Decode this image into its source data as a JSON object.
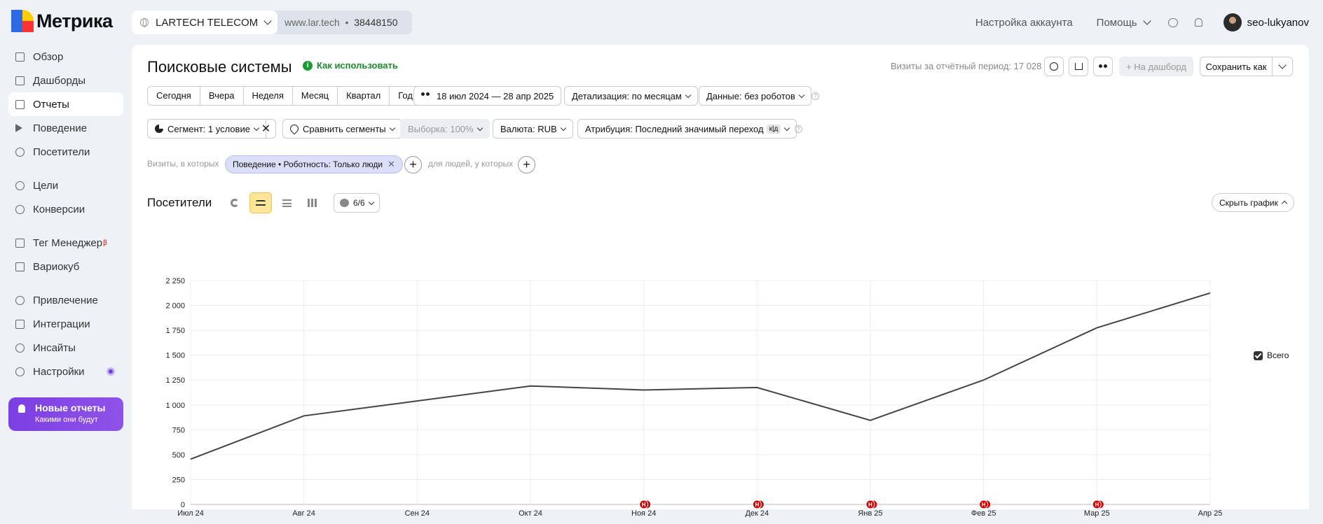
{
  "app": {
    "name": "Метрика"
  },
  "counter": {
    "name": "LARTECH TELECOM",
    "site": "www.lar.tech",
    "id": "38448150"
  },
  "header": {
    "account_settings": "Настройка аккаунта",
    "help": "Помощь",
    "username": "seo-lukyanov"
  },
  "sidebar": {
    "items": [
      {
        "label": "Обзор",
        "icon": "grid-icon"
      },
      {
        "label": "Дашборды",
        "icon": "dashboards-icon"
      },
      {
        "label": "Отчеты",
        "icon": "reports-icon",
        "active": true
      },
      {
        "label": "Поведение",
        "icon": "play-icon"
      },
      {
        "label": "Посетители",
        "icon": "person-icon"
      },
      {
        "label": "Цели",
        "icon": "target-icon"
      },
      {
        "label": "Конверсии",
        "icon": "percent-icon"
      },
      {
        "label": "Тег Менеджер",
        "icon": "tag-manager-icon",
        "badge": "β"
      },
      {
        "label": "Вариокуб",
        "icon": "variocube-icon"
      },
      {
        "label": "Привлечение",
        "icon": "flame-icon"
      },
      {
        "label": "Интеграции",
        "icon": "integrations-icon"
      },
      {
        "label": "Инсайты",
        "icon": "sparkle-icon"
      },
      {
        "label": "Настройки",
        "icon": "settings-icon"
      }
    ],
    "promo": {
      "title": "Новые отчеты",
      "subtitle": "Какими они будут"
    }
  },
  "report": {
    "title": "Поисковые системы",
    "how_to_use": "Как использовать",
    "visits_total": "Визиты за отчётный период: 17 028",
    "to_dashboard": "На дашборд",
    "save_as": "Сохранить как",
    "periods": [
      "Сегодня",
      "Вчера",
      "Неделя",
      "Месяц",
      "Квартал",
      "Год"
    ],
    "date_range": "18 июл 2024 — 28 апр 2025",
    "detail": "Детализация: по месяцам",
    "data_mode": "Данные: без роботов",
    "segment": "Сегмент: 1 условие",
    "compare": "Сравнить сегменты",
    "sample": "Выборка: 100%",
    "currency": "Валюта: RUB",
    "attribution": "Атрибуция: Последний значимый переход",
    "attribution_badge": "к|д",
    "filter_prefix": "Визиты, в которых",
    "filter_chip": "Поведение • Роботность: Только люди",
    "filter_people": "для людей, у которых",
    "chart_label": "Посетители",
    "series_count": "6/6",
    "hide_chart": "Скрыть график"
  },
  "chart_data": {
    "type": "line",
    "categories": [
      "Июл 24",
      "Авг 24",
      "Сен 24",
      "Окт 24",
      "Ноя 24",
      "Дек 24",
      "Янв 25",
      "Фев 25",
      "Мар 25",
      "Апр 25"
    ],
    "series": [
      {
        "name": "Всего",
        "values": [
          455,
          890,
          1040,
          1190,
          1150,
          1175,
          845,
          1250,
          1775,
          2125
        ],
        "color": "#444444"
      }
    ],
    "yticks": [
      "0",
      "250",
      "500",
      "750",
      "1 000",
      "1 250",
      "1 500",
      "1 750",
      "2 000",
      "2 250"
    ],
    "ylim": [
      0,
      2250
    ],
    "grid": true,
    "legend": "right",
    "annotations": [
      {
        "category": "Ноя 24",
        "label": "Н"
      },
      {
        "category": "Дек 24",
        "label": "Н"
      },
      {
        "category": "Янв 25",
        "label": "Н"
      },
      {
        "category": "Фев 25",
        "label": "Н"
      },
      {
        "category": "Мар 25",
        "label": "Н"
      }
    ]
  }
}
